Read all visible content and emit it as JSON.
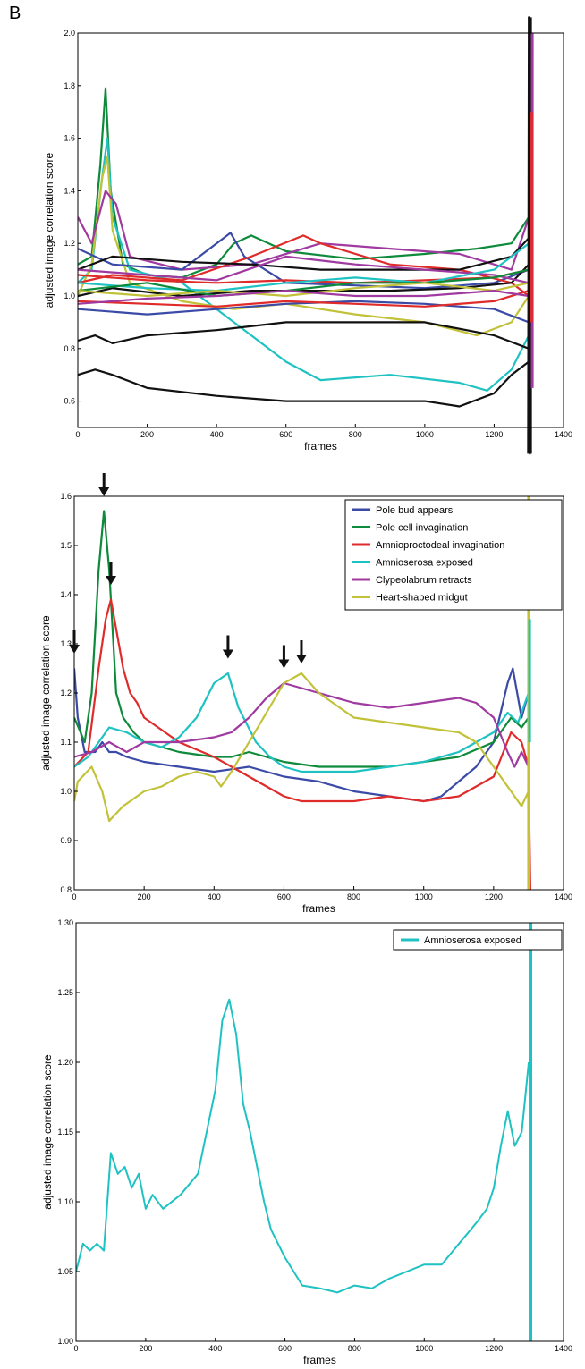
{
  "panel_label": "B",
  "chart_data": [
    {
      "type": "line",
      "title": "",
      "xlabel": "frames",
      "ylabel": "adjusted image correlation score",
      "xlim": [
        0,
        1400
      ],
      "ylim": [
        0.5,
        2.0
      ],
      "xticks": [
        0,
        200,
        400,
        600,
        800,
        1000,
        1200,
        1400
      ],
      "yticks": [
        0.6,
        0.8,
        1.0,
        1.2,
        1.4,
        1.6,
        1.8,
        2.0
      ],
      "ytick_labels": [
        "0.6",
        "0.8",
        "1.0",
        "1.2",
        "1.4",
        "1.6",
        "1.8",
        "2.0"
      ],
      "grid": false,
      "legend": "none",
      "series": [
        {
          "color": "#0d8a3a",
          "x": [
            0,
            40,
            65,
            80,
            95,
            130,
            200,
            300,
            400,
            450,
            500,
            600,
            800,
            1000,
            1150,
            1250,
            1300
          ],
          "values": [
            1.12,
            1.15,
            1.5,
            1.79,
            1.4,
            1.12,
            1.08,
            1.07,
            1.12,
            1.2,
            1.23,
            1.17,
            1.14,
            1.16,
            1.18,
            1.2,
            1.3
          ]
        },
        {
          "color": "#1fc2c2",
          "x": [
            0,
            40,
            70,
            85,
            100,
            150,
            300,
            450,
            520,
            600,
            700,
            900,
            1100,
            1180,
            1250,
            1300
          ],
          "values": [
            1.05,
            1.1,
            1.45,
            1.6,
            1.3,
            1.1,
            1.05,
            0.9,
            0.83,
            0.75,
            0.68,
            0.7,
            0.67,
            0.64,
            0.72,
            0.85
          ]
        },
        {
          "color": "#c2c23a",
          "x": [
            0,
            40,
            70,
            85,
            100,
            150,
            300,
            450,
            600,
            800,
            1000,
            1150,
            1250,
            1300
          ],
          "values": [
            1.0,
            1.12,
            1.45,
            1.53,
            1.25,
            1.05,
            0.98,
            0.95,
            0.97,
            0.93,
            0.9,
            0.85,
            0.9,
            1.0
          ]
        },
        {
          "color": "#a03aa0",
          "x": [
            0,
            40,
            80,
            110,
            150,
            300,
            500,
            700,
            900,
            1100,
            1250,
            1300
          ],
          "values": [
            1.3,
            1.2,
            1.4,
            1.35,
            1.15,
            1.1,
            1.12,
            1.2,
            1.18,
            1.16,
            1.1,
            1.3
          ]
        },
        {
          "color": "#3a4aa6",
          "x": [
            0,
            100,
            300,
            400,
            440,
            480,
            600,
            800,
            1000,
            1200,
            1300
          ],
          "values": [
            1.18,
            1.12,
            1.1,
            1.2,
            1.24,
            1.15,
            1.05,
            1.04,
            1.03,
            1.05,
            1.1
          ]
        },
        {
          "color": "#e02b2b",
          "x": [
            0,
            100,
            300,
            500,
            650,
            700,
            900,
            1100,
            1250,
            1300
          ],
          "values": [
            1.05,
            1.08,
            1.06,
            1.15,
            1.23,
            1.2,
            1.12,
            1.1,
            1.05,
            1.0
          ]
        },
        {
          "color": "#111111",
          "x": [
            0,
            50,
            100,
            200,
            400,
            600,
            800,
            1000,
            1100,
            1200,
            1250,
            1300
          ],
          "values": [
            0.7,
            0.72,
            0.7,
            0.65,
            0.62,
            0.6,
            0.6,
            0.6,
            0.58,
            0.63,
            0.7,
            0.75
          ]
        },
        {
          "color": "#111111",
          "x": [
            0,
            50,
            100,
            200,
            400,
            600,
            800,
            1000,
            1200,
            1300
          ],
          "values": [
            0.83,
            0.85,
            0.82,
            0.85,
            0.87,
            0.9,
            0.9,
            0.9,
            0.85,
            0.8
          ]
        },
        {
          "color": "#111111",
          "x": [
            0,
            100,
            300,
            500,
            700,
            900,
            1100,
            1250,
            1300
          ],
          "values": [
            1.1,
            1.15,
            1.13,
            1.12,
            1.1,
            1.1,
            1.1,
            1.15,
            1.22
          ]
        },
        {
          "color": "#111111",
          "x": [
            0,
            100,
            300,
            500,
            700,
            900,
            1100,
            1250,
            1300
          ],
          "values": [
            1.0,
            1.03,
            1.0,
            1.02,
            1.02,
            1.02,
            1.03,
            1.05,
            1.12
          ]
        },
        {
          "color": "#e02b2b",
          "x": [
            0,
            200,
            400,
            600,
            800,
            1000,
            1200,
            1300
          ],
          "values": [
            1.08,
            1.06,
            1.05,
            1.06,
            1.05,
            1.06,
            1.07,
            1.1
          ]
        },
        {
          "color": "#a03aa0",
          "x": [
            0,
            200,
            400,
            600,
            800,
            1000,
            1200,
            1300
          ],
          "values": [
            1.1,
            1.08,
            1.06,
            1.15,
            1.12,
            1.1,
            1.08,
            1.05
          ]
        },
        {
          "color": "#1fc2c2",
          "x": [
            0,
            200,
            400,
            600,
            800,
            1000,
            1200,
            1300
          ],
          "values": [
            1.05,
            1.03,
            1.02,
            1.05,
            1.07,
            1.05,
            1.1,
            1.2
          ]
        },
        {
          "color": "#0d8a3a",
          "x": [
            0,
            200,
            400,
            600,
            800,
            1000,
            1200,
            1300
          ],
          "values": [
            1.02,
            1.05,
            1.0,
            1.02,
            1.05,
            1.05,
            1.07,
            1.1
          ]
        },
        {
          "color": "#3a4aa6",
          "x": [
            0,
            200,
            400,
            600,
            800,
            1000,
            1200,
            1300
          ],
          "values": [
            0.95,
            0.93,
            0.95,
            0.97,
            0.98,
            0.97,
            0.95,
            0.9
          ]
        },
        {
          "color": "#c2c23a",
          "x": [
            0,
            200,
            400,
            600,
            800,
            1000,
            1200,
            1300
          ],
          "values": [
            1.02,
            1.0,
            1.02,
            1.0,
            1.03,
            1.05,
            1.02,
            1.05
          ]
        },
        {
          "color": "#e02b2b",
          "x": [
            0,
            200,
            400,
            600,
            800,
            1000,
            1200,
            1300
          ],
          "values": [
            0.98,
            0.97,
            0.96,
            0.98,
            0.97,
            0.96,
            0.98,
            1.02
          ]
        },
        {
          "color": "#a03aa0",
          "x": [
            0,
            200,
            400,
            600,
            800,
            1000,
            1200,
            1300
          ],
          "values": [
            0.97,
            0.99,
            1.0,
            1.02,
            1.0,
            1.0,
            1.02,
            1.0
          ]
        },
        {
          "color": "#111111",
          "x": [
            1298,
            1300,
            1303,
            1305
          ],
          "values": [
            0.4,
            2.06,
            0.4,
            1.6
          ]
        }
      ],
      "spikes": [
        {
          "color": "#111111",
          "x": 1305,
          "from": 2.06,
          "to": 0.4
        },
        {
          "color": "#a03aa0",
          "x": 1310,
          "from": 2.0,
          "to": 0.65
        },
        {
          "color": "#e02b2b",
          "x": 1308,
          "from": 1.7,
          "to": 0.9
        }
      ]
    },
    {
      "type": "line",
      "title": "",
      "xlabel": "frames",
      "ylabel": "adjusted image correlation score",
      "xlim": [
        0,
        1400
      ],
      "ylim": [
        0.8,
        1.6
      ],
      "xticks": [
        0,
        200,
        400,
        600,
        800,
        1000,
        1200,
        1400
      ],
      "yticks": [
        0.8,
        0.9,
        1.0,
        1.1,
        1.2,
        1.3,
        1.4,
        1.5,
        1.6
      ],
      "ytick_labels": [
        "0.8",
        "0.9",
        "1.0",
        "1.1",
        "1.2",
        "1.3",
        "1.4",
        "1.5",
        "1.6"
      ],
      "grid": false,
      "legend": "top-right",
      "series": [
        {
          "name": "Pole bud appears",
          "color": "#3a4aa6",
          "x": [
            0,
            10,
            30,
            60,
            80,
            100,
            120,
            150,
            200,
            300,
            400,
            500,
            600,
            700,
            800,
            900,
            1000,
            1050,
            1100,
            1150,
            1200,
            1240,
            1255,
            1280,
            1300
          ],
          "values": [
            1.25,
            1.15,
            1.08,
            1.08,
            1.1,
            1.08,
            1.08,
            1.07,
            1.06,
            1.05,
            1.04,
            1.05,
            1.03,
            1.02,
            1.0,
            0.99,
            0.98,
            0.99,
            1.02,
            1.05,
            1.1,
            1.22,
            1.25,
            1.15,
            1.2
          ]
        },
        {
          "name": "Pole cell invagination",
          "color": "#0d8a3a",
          "x": [
            0,
            30,
            50,
            70,
            85,
            100,
            120,
            140,
            170,
            200,
            300,
            400,
            450,
            500,
            600,
            700,
            800,
            900,
            1000,
            1100,
            1200,
            1250,
            1280,
            1300
          ],
          "values": [
            1.15,
            1.1,
            1.2,
            1.45,
            1.57,
            1.45,
            1.2,
            1.15,
            1.12,
            1.1,
            1.08,
            1.07,
            1.07,
            1.08,
            1.06,
            1.05,
            1.05,
            1.05,
            1.06,
            1.07,
            1.1,
            1.15,
            1.13,
            1.15
          ]
        },
        {
          "name": "Amnioproctodeal invagination",
          "color": "#e02b2b",
          "x": [
            0,
            40,
            70,
            90,
            105,
            120,
            140,
            160,
            180,
            200,
            300,
            400,
            500,
            600,
            650,
            700,
            800,
            900,
            1000,
            1100,
            1200,
            1250,
            1280,
            1300,
            1305
          ],
          "values": [
            1.05,
            1.08,
            1.25,
            1.35,
            1.39,
            1.33,
            1.25,
            1.2,
            1.18,
            1.15,
            1.1,
            1.07,
            1.03,
            0.99,
            0.98,
            0.98,
            0.98,
            0.99,
            0.98,
            0.99,
            1.03,
            1.12,
            1.1,
            1.05,
            0.8
          ]
        },
        {
          "name": "Amnioserosa exposed",
          "color": "#1fc2c2",
          "x": [
            0,
            40,
            100,
            150,
            200,
            250,
            300,
            350,
            400,
            440,
            470,
            520,
            560,
            600,
            650,
            700,
            800,
            900,
            1000,
            1100,
            1150,
            1200,
            1240,
            1270,
            1300
          ],
          "values": [
            1.05,
            1.07,
            1.13,
            1.12,
            1.1,
            1.09,
            1.11,
            1.15,
            1.22,
            1.24,
            1.17,
            1.1,
            1.07,
            1.05,
            1.04,
            1.04,
            1.04,
            1.05,
            1.06,
            1.08,
            1.1,
            1.12,
            1.16,
            1.14,
            1.2
          ]
        },
        {
          "name": "Clypeolabrum retracts",
          "color": "#a03aa0",
          "x": [
            0,
            50,
            100,
            150,
            200,
            300,
            400,
            450,
            500,
            550,
            600,
            650,
            700,
            800,
            900,
            1000,
            1100,
            1150,
            1200,
            1240,
            1260,
            1280,
            1300
          ],
          "values": [
            1.07,
            1.08,
            1.1,
            1.08,
            1.1,
            1.1,
            1.11,
            1.12,
            1.15,
            1.19,
            1.22,
            1.21,
            1.2,
            1.18,
            1.17,
            1.18,
            1.19,
            1.18,
            1.15,
            1.08,
            1.05,
            1.08,
            1.05
          ]
        },
        {
          "name": "Heart-shaped midgut",
          "color": "#c2c23a",
          "x": [
            0,
            10,
            50,
            80,
            100,
            140,
            200,
            250,
            300,
            350,
            400,
            420,
            450,
            500,
            550,
            600,
            650,
            700,
            800,
            900,
            1000,
            1100,
            1150,
            1200,
            1250,
            1280,
            1300
          ],
          "values": [
            0.98,
            1.02,
            1.05,
            1.0,
            0.94,
            0.97,
            1.0,
            1.01,
            1.03,
            1.04,
            1.03,
            1.01,
            1.04,
            1.1,
            1.16,
            1.22,
            1.24,
            1.2,
            1.15,
            1.14,
            1.13,
            1.12,
            1.1,
            1.05,
            1.0,
            0.97,
            1.0
          ]
        }
      ],
      "spikes": [
        {
          "color": "#c2c23a",
          "x": 1300,
          "from": 1.6,
          "to": 0.8
        },
        {
          "color": "#1fc2c2",
          "x": 1303,
          "from": 1.35,
          "to": 1.1
        }
      ],
      "arrows": [
        {
          "x": 0,
          "y": 1.28
        },
        {
          "x": 85,
          "y": 1.6
        },
        {
          "x": 105,
          "y": 1.42
        },
        {
          "x": 440,
          "y": 1.27
        },
        {
          "x": 600,
          "y": 1.25
        },
        {
          "x": 650,
          "y": 1.26
        }
      ]
    },
    {
      "type": "line",
      "title": "",
      "xlabel": "frames",
      "ylabel": "adjusted image correlation score",
      "xlim": [
        0,
        1400
      ],
      "ylim": [
        1.0,
        1.3
      ],
      "xticks": [
        0,
        200,
        400,
        600,
        800,
        1000,
        1200,
        1400
      ],
      "yticks": [
        1.0,
        1.05,
        1.1,
        1.15,
        1.2,
        1.25,
        1.3
      ],
      "ytick_labels": [
        "1.00",
        "1.05",
        "1.10",
        "1.15",
        "1.20",
        "1.25",
        "1.30"
      ],
      "grid": false,
      "legend": "top-right",
      "series": [
        {
          "name": "Amnioserosa exposed",
          "color": "#1fc2c2",
          "x": [
            0,
            20,
            40,
            60,
            80,
            100,
            120,
            140,
            160,
            180,
            200,
            220,
            250,
            300,
            350,
            400,
            420,
            440,
            460,
            480,
            500,
            540,
            560,
            600,
            650,
            700,
            750,
            800,
            850,
            900,
            950,
            1000,
            1050,
            1100,
            1150,
            1180,
            1200,
            1220,
            1240,
            1260,
            1280,
            1300
          ],
          "values": [
            1.05,
            1.07,
            1.065,
            1.07,
            1.065,
            1.135,
            1.12,
            1.125,
            1.11,
            1.12,
            1.095,
            1.105,
            1.095,
            1.105,
            1.12,
            1.18,
            1.23,
            1.245,
            1.22,
            1.17,
            1.15,
            1.1,
            1.08,
            1.06,
            1.04,
            1.038,
            1.035,
            1.04,
            1.038,
            1.045,
            1.05,
            1.055,
            1.055,
            1.07,
            1.085,
            1.095,
            1.11,
            1.14,
            1.165,
            1.14,
            1.15,
            1.2
          ]
        }
      ],
      "spikes": [
        {
          "color": "#1fc2c2",
          "x": 1305,
          "from": 1.3,
          "to": 1.0
        }
      ]
    }
  ]
}
